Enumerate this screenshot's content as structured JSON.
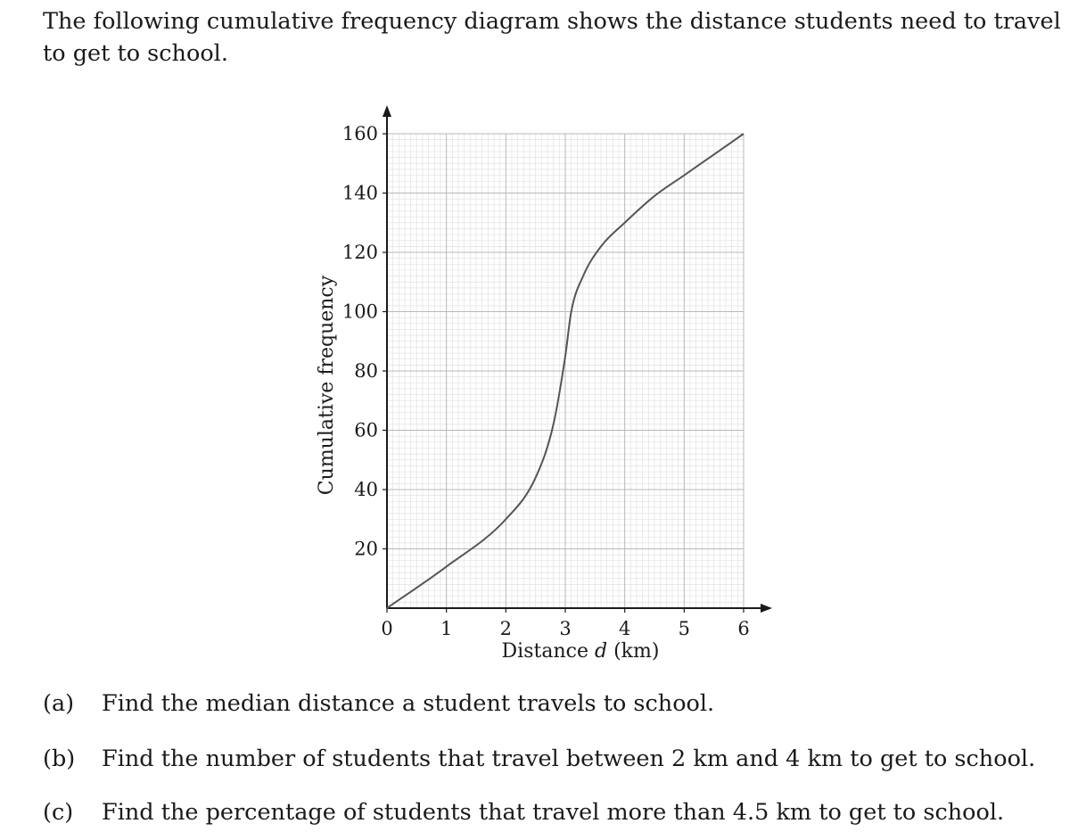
{
  "intro_text": "The following cumulative frequency diagram shows the distance students need to travel to get to school.",
  "chart_data": {
    "type": "line",
    "title": "",
    "xlabel_prefix": "Distance ",
    "xlabel_var": "d",
    "xlabel_suffix": " (km)",
    "ylabel": "Cumulative frequency",
    "xlim": [
      0,
      6
    ],
    "ylim": [
      0,
      160
    ],
    "x_ticks": [
      "0",
      "1",
      "2",
      "3",
      "4",
      "5",
      "6"
    ],
    "y_ticks": [
      "20",
      "40",
      "60",
      "80",
      "100",
      "120",
      "140",
      "160"
    ],
    "grid": true,
    "legend": "none",
    "line_color": "#555555",
    "series": [
      {
        "x": [
          0,
          1,
          2,
          2.5,
          2.8,
          3.0,
          3.1,
          3.3,
          3.6,
          4,
          4.5,
          5,
          5.5,
          6
        ],
        "values": [
          0,
          14,
          30,
          44,
          62,
          85,
          100,
          112,
          122,
          130,
          139,
          146,
          153,
          160
        ]
      }
    ]
  },
  "questions": [
    {
      "label": "(a)",
      "text": "Find the median distance a student travels to school."
    },
    {
      "label": "(b)",
      "text": "Find the number of students that travel between 2 km and 4 km to get to school."
    },
    {
      "label": "(c)",
      "text": "Find the percentage of students that travel more than 4.5 km to get to school."
    }
  ]
}
